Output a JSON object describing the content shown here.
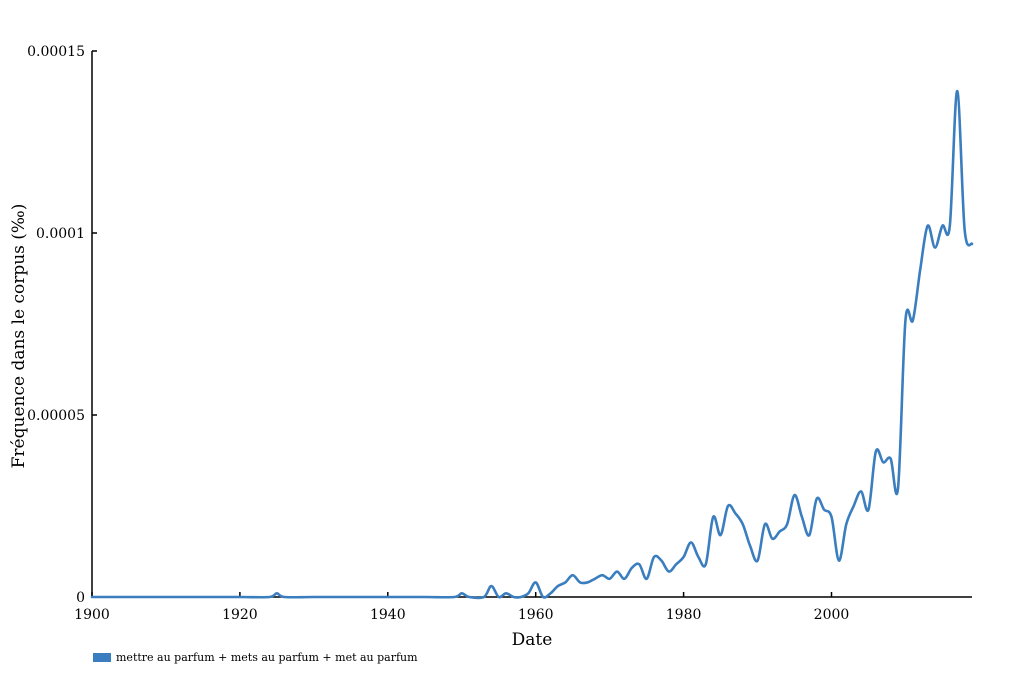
{
  "chart_data": {
    "type": "line",
    "xlabel": "Date",
    "ylabel": "Fréquence dans le corpus (‰)",
    "xlim": [
      1900,
      2019
    ],
    "ylim": [
      0,
      0.00015
    ],
    "x_ticks": [
      {
        "value": 1900,
        "label": "1900"
      },
      {
        "value": 1920,
        "label": "1920"
      },
      {
        "value": 1940,
        "label": "1940"
      },
      {
        "value": 1960,
        "label": "1960"
      },
      {
        "value": 1980,
        "label": "1980"
      },
      {
        "value": 2000,
        "label": "2000"
      }
    ],
    "y_ticks": [
      {
        "value": 0,
        "label": "0"
      },
      {
        "value": 5e-05,
        "label": "0.00005"
      },
      {
        "value": 0.0001,
        "label": "0.0001"
      },
      {
        "value": 0.00015,
        "label": "0.00015"
      }
    ],
    "legend_position": "bottom-left",
    "grid": false,
    "series": [
      {
        "name": "mettre au parfum + mets au parfum + met au parfum",
        "color": "#3a7ebf",
        "x": [
          1900,
          1905,
          1910,
          1915,
          1920,
          1924,
          1925,
          1926,
          1930,
          1935,
          1940,
          1945,
          1949,
          1950,
          1951,
          1953,
          1954,
          1955,
          1956,
          1957,
          1958,
          1959,
          1960,
          1961,
          1962,
          1963,
          1964,
          1965,
          1966,
          1967,
          1968,
          1969,
          1970,
          1971,
          1972,
          1973,
          1974,
          1975,
          1976,
          1977,
          1978,
          1979,
          1980,
          1981,
          1982,
          1983,
          1984,
          1985,
          1986,
          1987,
          1988,
          1989,
          1990,
          1991,
          1992,
          1993,
          1994,
          1995,
          1996,
          1997,
          1998,
          1999,
          2000,
          2001,
          2002,
          2003,
          2004,
          2005,
          2006,
          2007,
          2008,
          2009,
          2010,
          2011,
          2012,
          2013,
          2014,
          2015,
          2016,
          2017,
          2018,
          2019
        ],
        "y": [
          0,
          0,
          0,
          0,
          0,
          0,
          1e-06,
          0,
          0,
          0,
          0,
          0,
          0,
          1e-06,
          0,
          0,
          3e-06,
          0,
          1e-06,
          0,
          0,
          1e-06,
          4e-06,
          0,
          1e-06,
          3e-06,
          4e-06,
          6e-06,
          4e-06,
          4e-06,
          5e-06,
          6e-06,
          5e-06,
          7e-06,
          5e-06,
          8e-06,
          9e-06,
          5e-06,
          1.1e-05,
          1e-05,
          7e-06,
          9e-06,
          1.1e-05,
          1.5e-05,
          1.1e-05,
          9e-06,
          2.2e-05,
          1.7e-05,
          2.5e-05,
          2.3e-05,
          2e-05,
          1.4e-05,
          1e-05,
          2e-05,
          1.6e-05,
          1.8e-05,
          2e-05,
          2.8e-05,
          2.2e-05,
          1.7e-05,
          2.7e-05,
          2.4e-05,
          2.2e-05,
          1e-05,
          2e-05,
          2.5e-05,
          2.9e-05,
          2.4e-05,
          4e-05,
          3.7e-05,
          3.8e-05,
          3e-05,
          7.6e-05,
          7.6e-05,
          9e-05,
          0.000102,
          9.6e-05,
          0.000102,
          0.000102,
          0.000139,
          0.000101,
          9.7e-05
        ]
      }
    ]
  }
}
